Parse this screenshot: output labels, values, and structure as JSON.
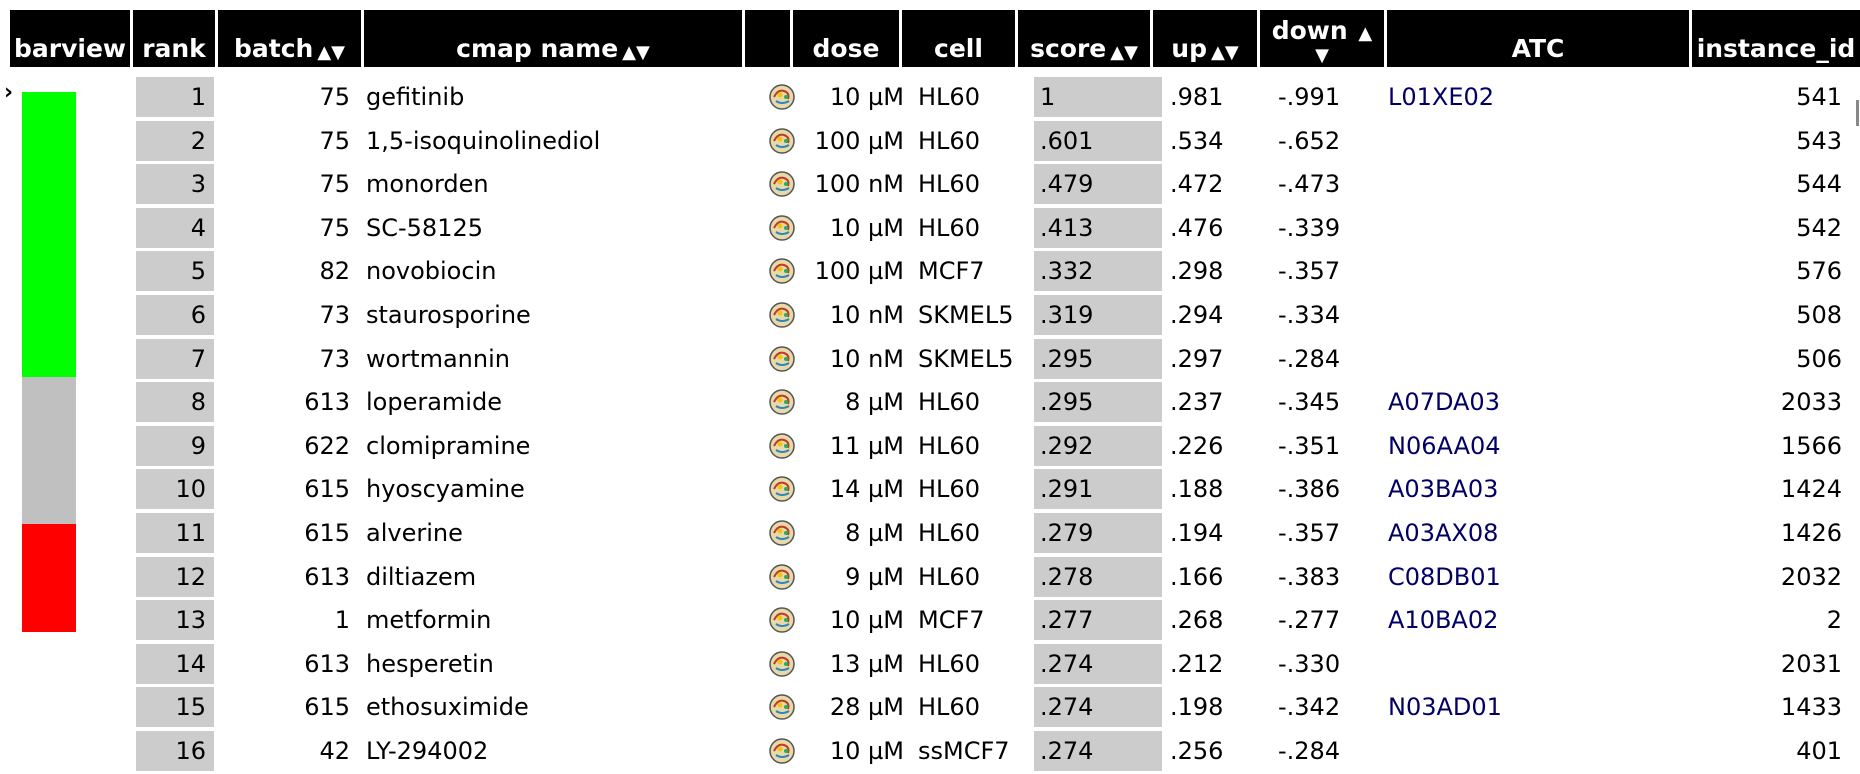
{
  "columns": {
    "barview": "barview",
    "rank": "rank",
    "batch": "batch",
    "cmap_name": "cmap name",
    "blank": "",
    "dose": "dose",
    "cell": "cell",
    "score": "score",
    "up": "up",
    "down": "down",
    "atc": "ATC",
    "instance_id": "instance_id",
    "sort_arrows": "▲▼",
    "sort_up": "▲",
    "sort_down": "▼"
  },
  "pointer": "›",
  "barview_segments": [
    {
      "color": "#00ff00",
      "fraction": 0.58
    },
    {
      "color": "#c0c0c0",
      "fraction": 0.3
    },
    {
      "color": "#ff0000",
      "fraction": 0.22
    }
  ],
  "rows": [
    {
      "rank": "1",
      "batch": "75",
      "name": "gefitinib",
      "dose": "10 µM",
      "cell": "HL60",
      "score": "1",
      "up": ".981",
      "down": "-.991",
      "atc": "L01XE02",
      "instance_id": "541"
    },
    {
      "rank": "2",
      "batch": "75",
      "name": "1,5-isoquinolinediol",
      "dose": "100 µM",
      "cell": "HL60",
      "score": ".601",
      "up": ".534",
      "down": "-.652",
      "atc": "",
      "instance_id": "543"
    },
    {
      "rank": "3",
      "batch": "75",
      "name": "monorden",
      "dose": "100 nM",
      "cell": "HL60",
      "score": ".479",
      "up": ".472",
      "down": "-.473",
      "atc": "",
      "instance_id": "544"
    },
    {
      "rank": "4",
      "batch": "75",
      "name": "SC-58125",
      "dose": "10 µM",
      "cell": "HL60",
      "score": ".413",
      "up": ".476",
      "down": "-.339",
      "atc": "",
      "instance_id": "542"
    },
    {
      "rank": "5",
      "batch": "82",
      "name": "novobiocin",
      "dose": "100 µM",
      "cell": "MCF7",
      "score": ".332",
      "up": ".298",
      "down": "-.357",
      "atc": "",
      "instance_id": "576"
    },
    {
      "rank": "6",
      "batch": "73",
      "name": "staurosporine",
      "dose": "10 nM",
      "cell": "SKMEL5",
      "score": ".319",
      "up": ".294",
      "down": "-.334",
      "atc": "",
      "instance_id": "508"
    },
    {
      "rank": "7",
      "batch": "73",
      "name": "wortmannin",
      "dose": "10 nM",
      "cell": "SKMEL5",
      "score": ".295",
      "up": ".297",
      "down": "-.284",
      "atc": "",
      "instance_id": "506"
    },
    {
      "rank": "8",
      "batch": "613",
      "name": "loperamide",
      "dose": "8 µM",
      "cell": "HL60",
      "score": ".295",
      "up": ".237",
      "down": "-.345",
      "atc": "A07DA03",
      "instance_id": "2033"
    },
    {
      "rank": "9",
      "batch": "622",
      "name": "clomipramine",
      "dose": "11 µM",
      "cell": "HL60",
      "score": ".292",
      "up": ".226",
      "down": "-.351",
      "atc": "N06AA04",
      "instance_id": "1566"
    },
    {
      "rank": "10",
      "batch": "615",
      "name": "hyoscyamine",
      "dose": "14 µM",
      "cell": "HL60",
      "score": ".291",
      "up": ".188",
      "down": "-.386",
      "atc": "A03BA03",
      "instance_id": "1424"
    },
    {
      "rank": "11",
      "batch": "615",
      "name": "alverine",
      "dose": "8 µM",
      "cell": "HL60",
      "score": ".279",
      "up": ".194",
      "down": "-.357",
      "atc": "A03AX08",
      "instance_id": "1426"
    },
    {
      "rank": "12",
      "batch": "613",
      "name": "diltiazem",
      "dose": "9 µM",
      "cell": "HL60",
      "score": ".278",
      "up": ".166",
      "down": "-.383",
      "atc": "C08DB01",
      "instance_id": "2032"
    },
    {
      "rank": "13",
      "batch": "1",
      "name": "metformin",
      "dose": "10 µM",
      "cell": "MCF7",
      "score": ".277",
      "up": ".268",
      "down": "-.277",
      "atc": "A10BA02",
      "instance_id": "2"
    },
    {
      "rank": "14",
      "batch": "613",
      "name": "hesperetin",
      "dose": "13 µM",
      "cell": "HL60",
      "score": ".274",
      "up": ".212",
      "down": "-.330",
      "atc": "",
      "instance_id": "2031"
    },
    {
      "rank": "15",
      "batch": "615",
      "name": "ethosuximide",
      "dose": "28 µM",
      "cell": "HL60",
      "score": ".274",
      "up": ".198",
      "down": "-.342",
      "atc": "N03AD01",
      "instance_id": "1433"
    },
    {
      "rank": "16",
      "batch": "42",
      "name": "LY-294002",
      "dose": "10 µM",
      "cell": "ssMCF7",
      "score": ".274",
      "up": ".256",
      "down": "-.284",
      "atc": "",
      "instance_id": "401"
    }
  ]
}
